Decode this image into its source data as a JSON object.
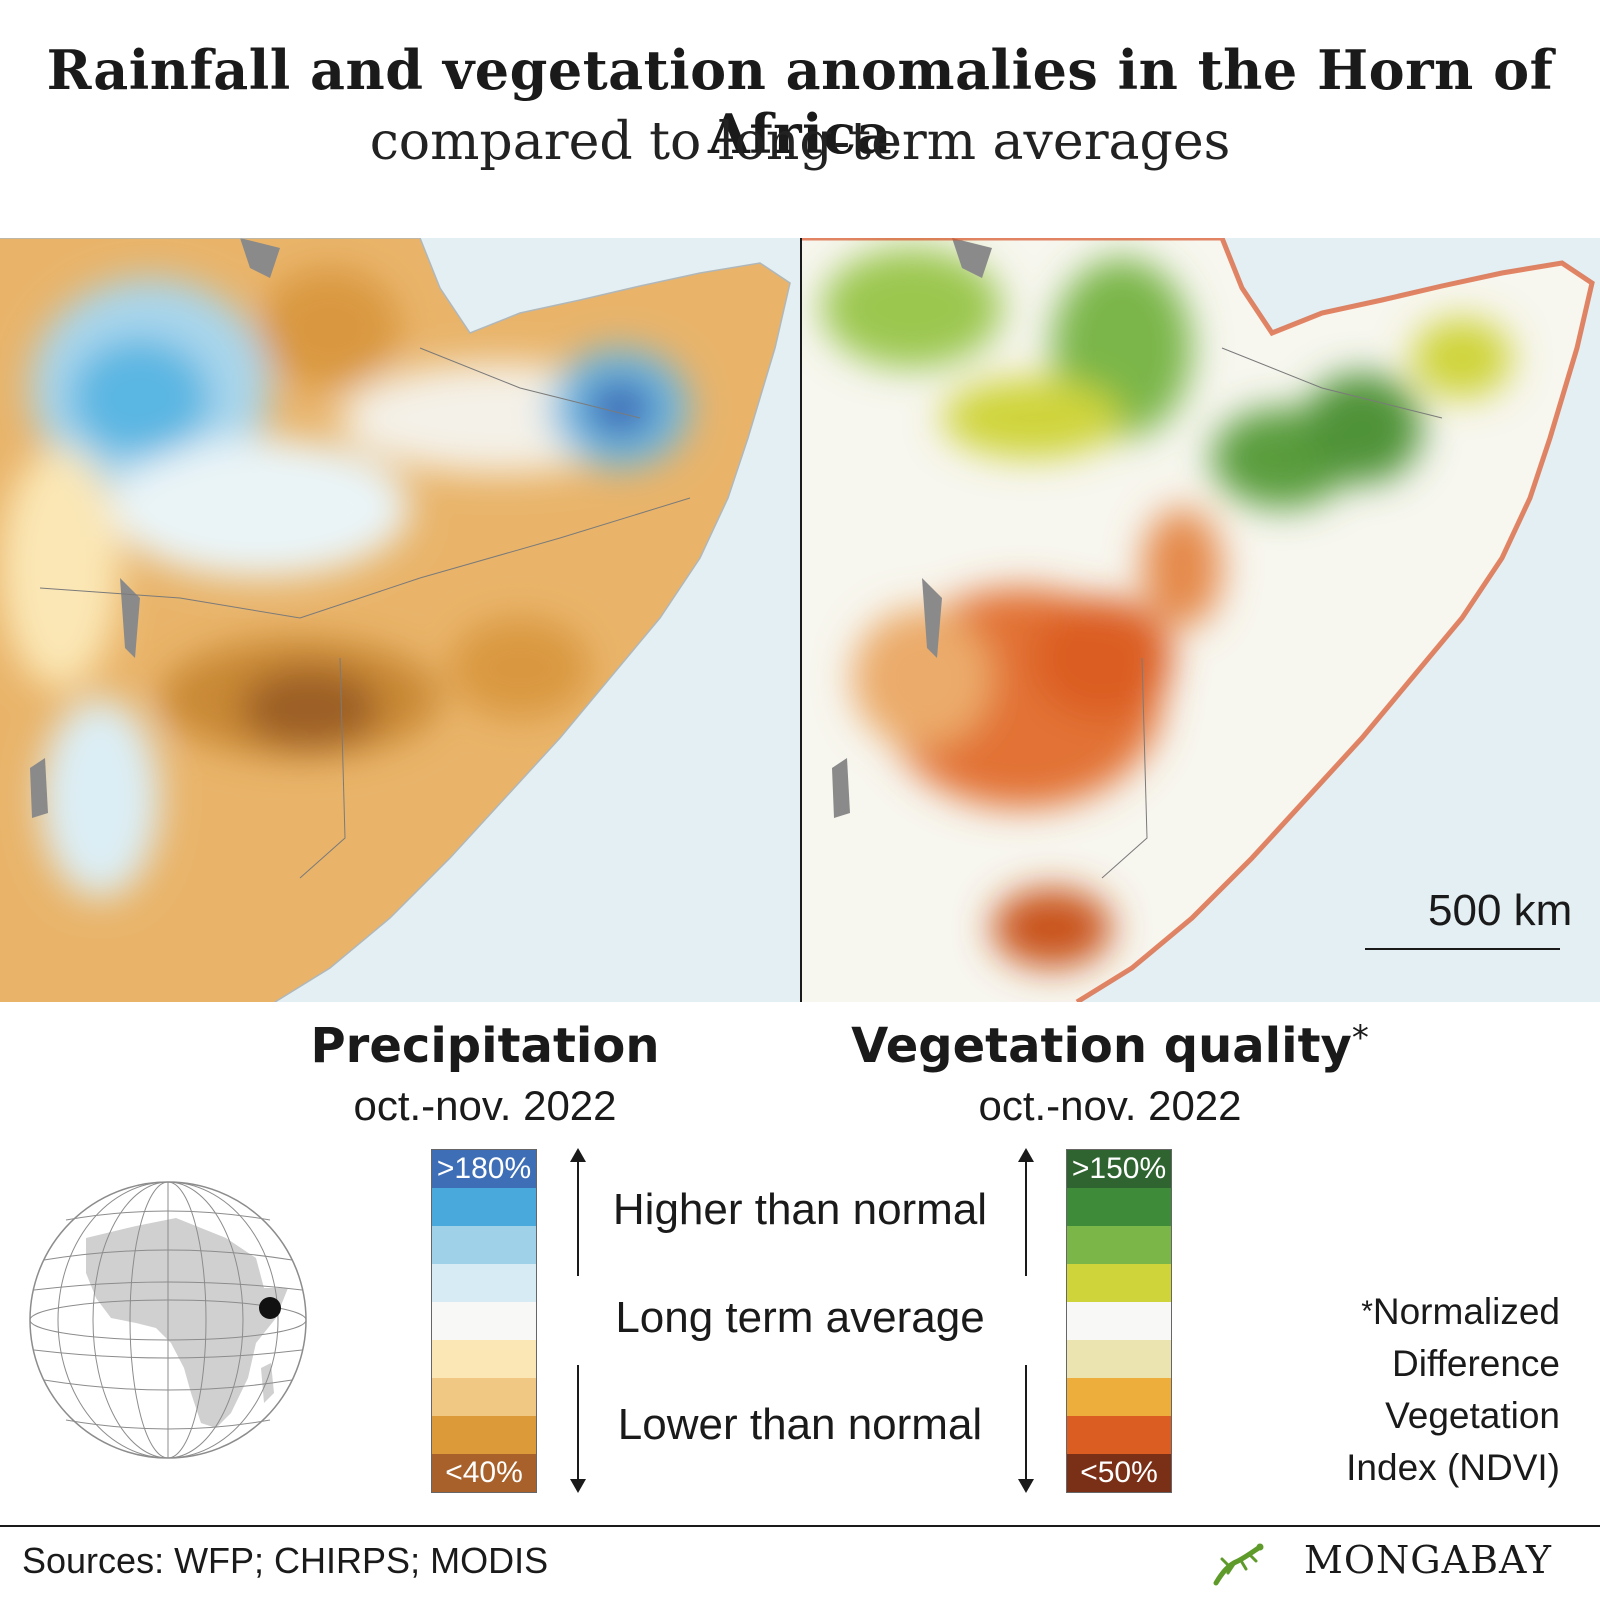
{
  "header": {
    "title": "Rainfall and vegetation anomalies in the Horn of Africa",
    "subtitle": "compared to long-term averages"
  },
  "map": {
    "scale_label": "500 km"
  },
  "legend_precip": {
    "title": "Precipitation",
    "period": "oct.-nov. 2022",
    "top_label": ">180%",
    "bottom_label": "<40%",
    "colors": [
      "#3e6fb6",
      "#4aa9dc",
      "#9fd1e8",
      "#d7ebf4",
      "#f8f8f6",
      "#fbe7b5",
      "#f0c783",
      "#dc9a38",
      "#a8612b"
    ]
  },
  "legend_veg": {
    "title": "Vegetation quality",
    "title_mark": "*",
    "period": "oct.-nov. 2022",
    "top_label": ">150%",
    "bottom_label": "<50%",
    "colors": [
      "#2f6330",
      "#3e8b3a",
      "#7ab648",
      "#cfd43a",
      "#f8f8f6",
      "#ebe3b0",
      "#edae3c",
      "#db5d21",
      "#7a2f17"
    ]
  },
  "legend_text": {
    "higher": "Higher than normal",
    "average": "Long term average",
    "lower": "Lower than normal"
  },
  "ndvi_note": {
    "mark": "*",
    "line1": "Normalized",
    "line2": "Difference",
    "line3": "Vegetation",
    "line4": "Index (NDVI)"
  },
  "footer": {
    "sources": "Sources: WFP; CHIRPS; MODIS",
    "brand": "MONGABAY"
  }
}
